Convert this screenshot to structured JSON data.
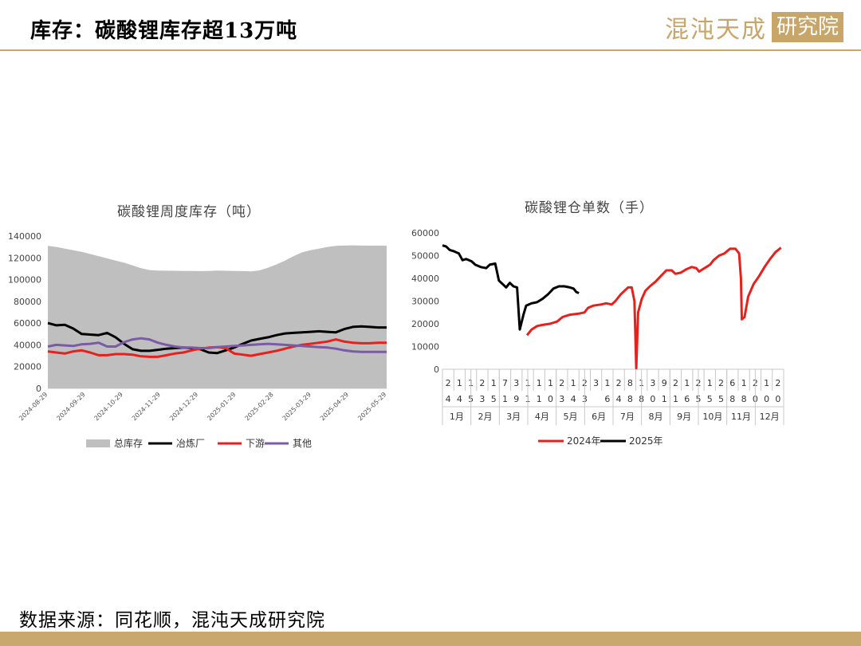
{
  "header": {
    "title": "库存：碳酸锂库存超13万吨",
    "logo_text": "混沌天成",
    "logo_box_text": "研究院"
  },
  "footer": {
    "source": "数据来源：同花顺，混沌天成研究院"
  },
  "colors": {
    "gold": "#c8a66a",
    "area_gray": "#bfbfbf",
    "black": "#000000",
    "red": "#e8201b",
    "purple": "#7b5aa6"
  },
  "chart_data": [
    {
      "type": "area",
      "title": "碳酸锂周度库存（吨）",
      "ylim": [
        0,
        140000
      ],
      "yticks": [
        "0",
        "20000",
        "40000",
        "60000",
        "80000",
        "100000",
        "120000",
        "140000"
      ],
      "ytick_values": [
        0,
        20000,
        40000,
        60000,
        80000,
        100000,
        120000,
        140000
      ],
      "xtick_labels": [
        "2024-08-29",
        "2024-09-29",
        "2024-10-29",
        "2024-11-29",
        "2024-12-29",
        "2025-01-29",
        "2025-02-28",
        "2025-03-29",
        "2025-04-29",
        "2025-05-29"
      ],
      "legend_position": "bottom",
      "series": [
        {
          "name": "总库存",
          "kind": "area",
          "values": [
            131000,
            130000,
            128500,
            127000,
            125500,
            123500,
            121500,
            119500,
            117500,
            115500,
            113000,
            110500,
            108800,
            108300,
            108200,
            108100,
            108000,
            108000,
            107800,
            108000,
            108300,
            108100,
            108000,
            107800,
            107600,
            108500,
            111000,
            114000,
            117500,
            121500,
            125000,
            127000,
            128500,
            130000,
            131000,
            131300,
            131500,
            131300,
            131200,
            131200,
            131100
          ]
        },
        {
          "name": "冶炼厂",
          "kind": "line",
          "values": [
            60000,
            58000,
            58500,
            55000,
            50000,
            49500,
            49000,
            51000,
            47000,
            41000,
            36000,
            34500,
            34500,
            35500,
            36500,
            37000,
            37500,
            37000,
            36000,
            33000,
            32500,
            35000,
            37500,
            41000,
            44000,
            45500,
            47000,
            49000,
            50500,
            51000,
            51500,
            52000,
            52500,
            52000,
            51500,
            54500,
            56500,
            57000,
            56500,
            56000,
            56000
          ]
        },
        {
          "name": "下游",
          "kind": "line",
          "values": [
            34000,
            33000,
            32000,
            34000,
            35000,
            33000,
            30500,
            30500,
            31500,
            31500,
            31000,
            29500,
            29000,
            29000,
            30500,
            32000,
            33000,
            35000,
            36500,
            37500,
            38000,
            37000,
            32000,
            31000,
            30000,
            31500,
            33000,
            34500,
            36500,
            38500,
            40000,
            41000,
            42000,
            43000,
            45000,
            43000,
            42000,
            41500,
            41500,
            42000,
            42000
          ]
        },
        {
          "name": "其他",
          "kind": "line",
          "values": [
            38500,
            40000,
            39500,
            39000,
            40500,
            41000,
            42000,
            38500,
            38500,
            42500,
            45000,
            46000,
            45000,
            42000,
            40000,
            38500,
            37500,
            37500,
            37000,
            37000,
            38000,
            38500,
            39000,
            39500,
            40000,
            40500,
            41000,
            40500,
            40000,
            39500,
            39000,
            38500,
            38000,
            37500,
            36500,
            35000,
            34000,
            33500,
            33500,
            33500,
            33500
          ]
        }
      ]
    },
    {
      "type": "line",
      "title": "碳酸锂仓单数（手）",
      "ylim": [
        0,
        60000
      ],
      "yticks": [
        "0",
        "10000",
        "20000",
        "30000",
        "40000",
        "50000",
        "60000"
      ],
      "ytick_values": [
        0,
        10000,
        20000,
        30000,
        40000,
        50000,
        60000
      ],
      "x_tick_digits": [
        [
          "2",
          "4"
        ],
        [
          "1",
          "4"
        ],
        [
          "1",
          "5"
        ],
        [
          "2",
          "3"
        ],
        [
          "1",
          "5"
        ],
        [
          "7",
          "1"
        ],
        [
          "3",
          "9"
        ],
        [
          "1",
          "1"
        ],
        [
          "1",
          "1"
        ],
        [
          "1",
          "0"
        ],
        [
          "2",
          "3"
        ],
        [
          "1",
          "4"
        ],
        [
          "2",
          "3"
        ],
        [
          "3",
          ""
        ],
        [
          "1",
          "6"
        ],
        [
          "2",
          "4"
        ],
        [
          "8",
          "8"
        ],
        [
          "1",
          "8"
        ],
        [
          "3",
          "0"
        ],
        [
          "9",
          "1"
        ],
        [
          "2",
          "1"
        ],
        [
          "1",
          "6"
        ],
        [
          "2",
          "5"
        ],
        [
          "1",
          "5"
        ],
        [
          "2",
          "5"
        ],
        [
          "6",
          "8"
        ],
        [
          "1",
          "8"
        ],
        [
          "2",
          "0"
        ],
        [
          "1",
          "0"
        ],
        [
          "2",
          "0"
        ]
      ],
      "months": [
        "1月",
        "2月",
        "3月",
        "4月",
        "5月",
        "6月",
        "7月",
        "8月",
        "9月",
        "10月",
        "11月",
        "12月"
      ],
      "month_boundaries": [
        0,
        3,
        6,
        9,
        13,
        16,
        19,
        22,
        24,
        28,
        30
      ],
      "legend_position": "bottom",
      "series": [
        {
          "name": "2024年",
          "points": [
            [
              9.3,
              15000
            ],
            [
              9.8,
              17500
            ],
            [
              10.4,
              19000
            ],
            [
              11.0,
              19500
            ],
            [
              11.8,
              20000
            ],
            [
              12.6,
              21000
            ],
            [
              13.2,
              23000
            ],
            [
              14.0,
              24000
            ],
            [
              15.0,
              24500
            ],
            [
              15.6,
              25000
            ],
            [
              16.0,
              27000
            ],
            [
              16.6,
              28000
            ],
            [
              17.4,
              28500
            ],
            [
              18.0,
              29000
            ],
            [
              18.6,
              28500
            ],
            [
              19.0,
              30000
            ],
            [
              19.6,
              33000
            ],
            [
              20.0,
              34500
            ],
            [
              20.4,
              36000
            ],
            [
              20.8,
              36000
            ],
            [
              21.1,
              30000
            ],
            [
              21.3,
              500
            ],
            [
              21.5,
              25000
            ],
            [
              21.9,
              31000
            ],
            [
              22.3,
              34500
            ],
            [
              22.8,
              36500
            ],
            [
              23.4,
              38500
            ],
            [
              24.0,
              41000
            ],
            [
              24.6,
              43500
            ],
            [
              25.2,
              43500
            ],
            [
              25.6,
              42000
            ],
            [
              26.2,
              42500
            ],
            [
              26.8,
              44000
            ],
            [
              27.4,
              45000
            ],
            [
              27.9,
              44500
            ],
            [
              28.2,
              43000
            ],
            [
              28.6,
              44000
            ],
            [
              29.0,
              45000
            ],
            [
              29.4,
              46000
            ],
            [
              29.8,
              48000
            ],
            [
              30.4,
              50000
            ],
            [
              31.0,
              51000
            ],
            [
              31.6,
              53000
            ],
            [
              32.2,
              53000
            ],
            [
              32.6,
              51000
            ],
            [
              32.8,
              40000
            ],
            [
              32.9,
              22000
            ],
            [
              33.2,
              23000
            ],
            [
              33.6,
              32000
            ],
            [
              34.2,
              37500
            ],
            [
              34.8,
              41000
            ],
            [
              35.4,
              45000
            ],
            [
              36.0,
              48500
            ],
            [
              36.6,
              51500
            ],
            [
              37.2,
              53500
            ]
          ]
        },
        {
          "name": "2025年",
          "points": [
            [
              0.0,
              54500
            ],
            [
              0.4,
              54000
            ],
            [
              0.8,
              52500
            ],
            [
              1.2,
              52000
            ],
            [
              1.8,
              51000
            ],
            [
              2.2,
              48000
            ],
            [
              2.6,
              48500
            ],
            [
              3.2,
              47500
            ],
            [
              3.6,
              46000
            ],
            [
              4.2,
              45000
            ],
            [
              4.8,
              44500
            ],
            [
              5.2,
              46000
            ],
            [
              5.8,
              46500
            ],
            [
              6.2,
              39000
            ],
            [
              6.6,
              37500
            ],
            [
              7.0,
              36000
            ],
            [
              7.4,
              38000
            ],
            [
              7.8,
              36500
            ],
            [
              8.2,
              36000
            ],
            [
              8.5,
              17500
            ],
            [
              8.9,
              24000
            ],
            [
              9.2,
              28000
            ],
            [
              9.8,
              29000
            ],
            [
              10.4,
              29500
            ],
            [
              11.0,
              31000
            ],
            [
              11.6,
              33000
            ],
            [
              12.2,
              35500
            ],
            [
              12.8,
              36500
            ],
            [
              13.4,
              36500
            ],
            [
              14.0,
              36000
            ],
            [
              14.4,
              35500
            ],
            [
              14.7,
              34000
            ],
            [
              15.0,
              33500
            ]
          ]
        }
      ]
    }
  ]
}
